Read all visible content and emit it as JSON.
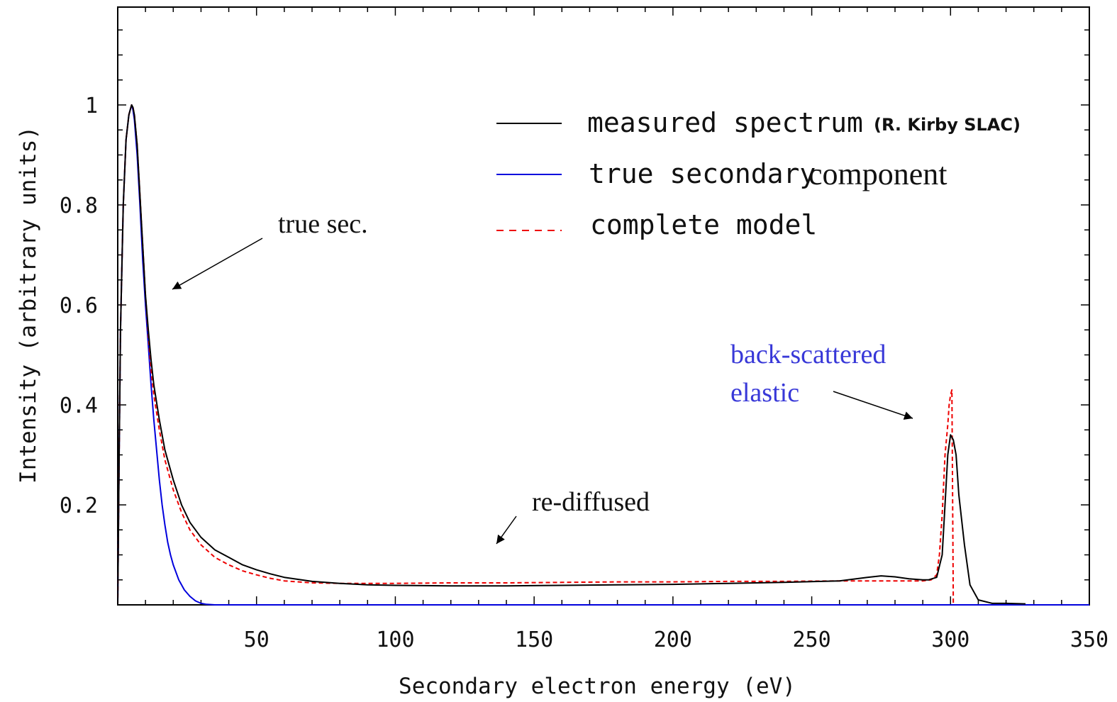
{
  "chart_data": {
    "type": "line",
    "xlabel": "Secondary electron energy (eV)",
    "ylabel": "Intensity (arbitrary units)",
    "xlim": [
      0,
      350
    ],
    "ylim": [
      0,
      1.2
    ],
    "x_ticks": [
      50,
      100,
      150,
      200,
      250,
      300,
      350
    ],
    "x_tick_labels": [
      "50",
      "100",
      "150",
      "200",
      "250",
      "300",
      "350"
    ],
    "y_ticks": [
      0.2,
      0.4,
      0.6,
      0.8,
      1.0
    ],
    "y_tick_labels": [
      "0.2",
      "0.4",
      "0.6",
      "0.8",
      "1"
    ],
    "legend": {
      "placement": "top-right",
      "entries": [
        {
          "text": "measured spectrum",
          "suffix": "(R. Kirby SLAC)"
        },
        {
          "text": "true secondary",
          "suffix": "component"
        },
        {
          "text": "complete model",
          "suffix": ""
        }
      ]
    },
    "series": [
      {
        "name": "measured spectrum",
        "color": "#000000",
        "dash": "solid",
        "x": [
          0,
          0.5,
          1,
          2,
          3,
          4,
          4.5,
          5,
          5.5,
          6,
          7,
          8,
          9,
          10,
          11,
          12,
          13,
          15,
          17,
          20,
          23,
          26,
          30,
          35,
          40,
          45,
          50,
          55,
          60,
          70,
          80,
          90,
          100,
          120,
          140,
          160,
          180,
          200,
          220,
          240,
          260,
          270,
          275,
          280,
          285,
          290,
          292,
          295,
          297,
          298,
          299,
          300,
          301,
          302,
          303,
          305,
          307,
          310,
          315,
          320,
          327
        ],
        "y": [
          0,
          0.3,
          0.55,
          0.8,
          0.93,
          0.98,
          0.99,
          1.0,
          0.995,
          0.98,
          0.92,
          0.82,
          0.72,
          0.62,
          0.55,
          0.49,
          0.44,
          0.37,
          0.31,
          0.25,
          0.2,
          0.165,
          0.135,
          0.11,
          0.095,
          0.08,
          0.07,
          0.062,
          0.055,
          0.047,
          0.043,
          0.04,
          0.039,
          0.038,
          0.038,
          0.039,
          0.04,
          0.041,
          0.043,
          0.045,
          0.048,
          0.055,
          0.058,
          0.056,
          0.052,
          0.05,
          0.05,
          0.055,
          0.1,
          0.2,
          0.3,
          0.34,
          0.33,
          0.3,
          0.22,
          0.12,
          0.04,
          0.01,
          0.003,
          0.003,
          0.002
        ]
      },
      {
        "name": "true secondary component",
        "color": "#0000dd",
        "dash": "solid",
        "x": [
          0,
          0.5,
          1,
          2,
          3,
          4,
          4.5,
          5,
          5.5,
          6,
          7,
          8,
          9,
          10,
          11,
          12,
          13,
          14,
          15,
          16,
          17,
          18,
          19,
          20,
          22,
          24,
          26,
          28,
          30,
          32,
          35,
          40,
          60,
          100,
          200,
          300,
          350
        ],
        "y": [
          0,
          0.3,
          0.55,
          0.8,
          0.93,
          0.98,
          0.99,
          1.0,
          0.99,
          0.97,
          0.9,
          0.8,
          0.69,
          0.6,
          0.52,
          0.44,
          0.37,
          0.31,
          0.25,
          0.2,
          0.16,
          0.125,
          0.1,
          0.08,
          0.05,
          0.03,
          0.017,
          0.008,
          0.003,
          0.001,
          0,
          0,
          0,
          0,
          0,
          0,
          0
        ]
      },
      {
        "name": "complete model",
        "color": "#ee0000",
        "dash": "dashed",
        "x": [
          0,
          0.5,
          1,
          2,
          3,
          4,
          4.5,
          5,
          5.5,
          6,
          7,
          8,
          9,
          10,
          11,
          12,
          13,
          15,
          17,
          20,
          23,
          26,
          30,
          35,
          40,
          45,
          50,
          55,
          60,
          70,
          80,
          90,
          100,
          120,
          140,
          160,
          180,
          200,
          220,
          240,
          260,
          280,
          290,
          293,
          295,
          296,
          297,
          298,
          299,
          299.5,
          300,
          300.5,
          301
        ],
        "y": [
          0,
          0.3,
          0.55,
          0.8,
          0.93,
          0.98,
          0.99,
          1.0,
          0.995,
          0.98,
          0.92,
          0.82,
          0.72,
          0.62,
          0.54,
          0.47,
          0.42,
          0.35,
          0.29,
          0.23,
          0.185,
          0.15,
          0.12,
          0.095,
          0.08,
          0.068,
          0.06,
          0.053,
          0.048,
          0.044,
          0.043,
          0.043,
          0.043,
          0.044,
          0.044,
          0.045,
          0.046,
          0.046,
          0.047,
          0.047,
          0.048,
          0.048,
          0.048,
          0.05,
          0.06,
          0.1,
          0.18,
          0.3,
          0.36,
          0.4,
          0.42,
          0.43,
          0
        ]
      }
    ],
    "annotations": [
      {
        "id": "true-sec",
        "text": "true sec.",
        "color": "#111111",
        "arrow_to": [
          19,
          0.63
        ]
      },
      {
        "id": "re-diffused",
        "text": "re-diffused",
        "color": "#111111",
        "arrow_to": [
          137,
          0.12
        ]
      },
      {
        "id": "back-scattered",
        "lines": [
          "back-scattered",
          "elastic"
        ],
        "color": "#3838d8",
        "arrow_to": [
          283,
          0.37
        ]
      }
    ]
  }
}
